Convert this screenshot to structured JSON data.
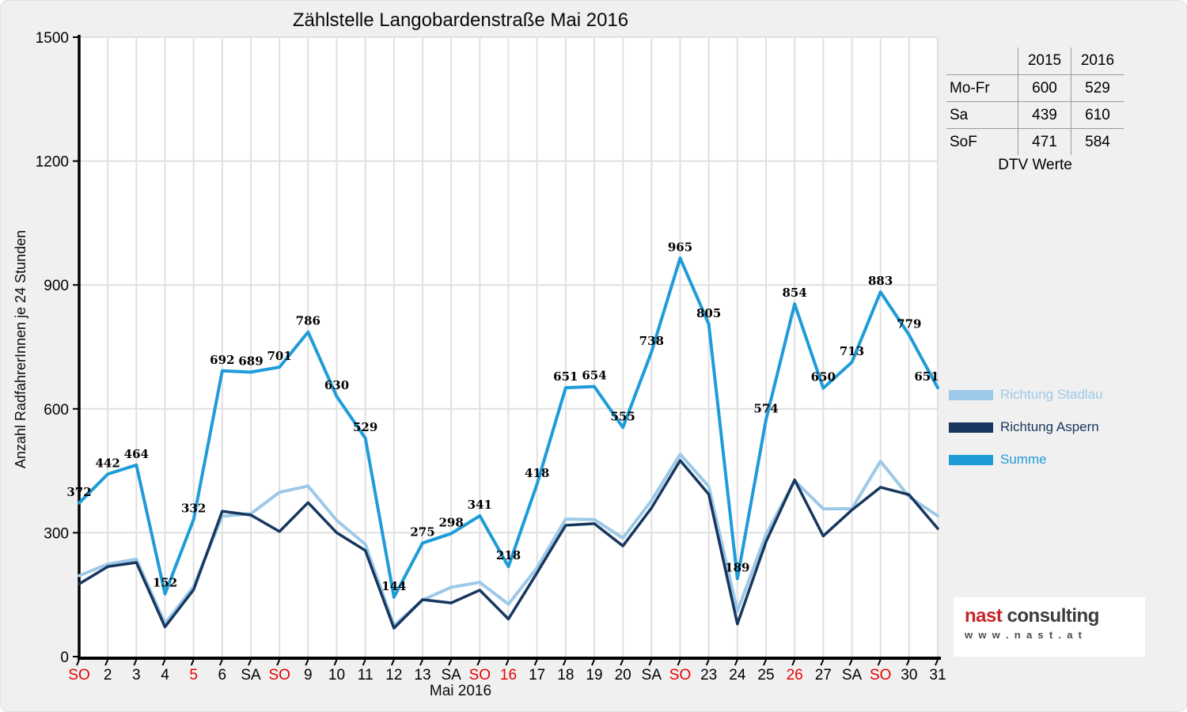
{
  "chart_data": {
    "type": "line",
    "title": "Zählstelle Langobardenstraße Mai 2016",
    "xlabel": "Mai 2016",
    "ylabel": "Anzahl RadfahrerInnen je 24 Stunden",
    "ylim": [
      0,
      1500
    ],
    "yticks": [
      0,
      300,
      600,
      900,
      1200,
      1500
    ],
    "grid": true,
    "legend_position": "right",
    "categories": [
      "SO",
      "2",
      "3",
      "4",
      "5",
      "6",
      "SA",
      "SO",
      "9",
      "10",
      "11",
      "12",
      "13",
      "SA",
      "SO",
      "16",
      "17",
      "18",
      "19",
      "20",
      "SA",
      "SO",
      "23",
      "24",
      "25",
      "26",
      "27",
      "SA",
      "SO",
      "30",
      "31"
    ],
    "holiday_red_indices": [
      0,
      4,
      7,
      14,
      15,
      21,
      25,
      28
    ],
    "series": [
      {
        "name": "Richtung Stadlau",
        "color": "#9dc9e8",
        "width": 4,
        "values": [
          196,
          224,
          236,
          80,
          170,
          340,
          346,
          398,
          413,
          330,
          272,
          75,
          137,
          168,
          180,
          127,
          215,
          333,
          332,
          287,
          378,
          490,
          412,
          110,
          296,
          426,
          358,
          358,
          473,
          387,
          341
        ]
      },
      {
        "name": "Richtung Aspern",
        "color": "#17375e",
        "width": 3.5,
        "values": [
          176,
          218,
          228,
          72,
          162,
          352,
          343,
          303,
          373,
          300,
          257,
          69,
          138,
          130,
          161,
          91,
          203,
          318,
          322,
          268,
          360,
          475,
          393,
          79,
          278,
          428,
          292,
          355,
          410,
          392,
          310
        ]
      },
      {
        "name": "Summe",
        "color": "#1f9cd8",
        "width": 4,
        "labels_shown": true,
        "values": [
          372,
          442,
          464,
          152,
          332,
          692,
          689,
          701,
          786,
          630,
          529,
          144,
          275,
          298,
          341,
          218,
          418,
          651,
          654,
          555,
          738,
          965,
          805,
          189,
          574,
          854,
          650,
          713,
          883,
          779,
          651
        ]
      }
    ]
  },
  "table": {
    "col_headers": [
      "2015",
      "2016"
    ],
    "rows": [
      [
        "Mo-Fr",
        "600",
        "529"
      ],
      [
        "Sa",
        "439",
        "610"
      ],
      [
        "SoF",
        "471",
        "584"
      ]
    ],
    "caption": "DTV Werte"
  },
  "logo": {
    "brand": "nast",
    "brand2": " consulting",
    "website": "w w w . n a s t . a t"
  },
  "colors": {
    "panel_background": "#f0f0f0",
    "plot_background": "#ffffff",
    "gridline": "#e0e0e0",
    "axis": "#000000",
    "holiday_red": "#e60000",
    "stadlau": "#9dc9e8",
    "aspern": "#17375e",
    "summe": "#1f9cd8"
  }
}
